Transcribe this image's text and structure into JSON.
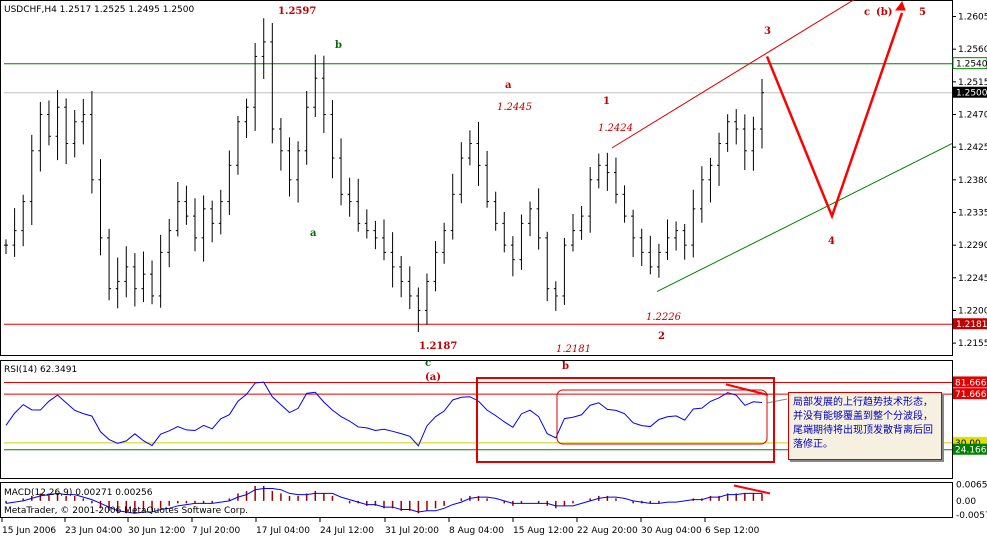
{
  "header": {
    "chart_title": "USDCHF,H4  1.2517 1.2525 1.2495 1.2500",
    "rsi_title": "RSI(14) 62.3491",
    "macd_title": "MACD(12,26,9) 0.00271 0.00256",
    "copyright": "MetaTrader, © 2001-2006 MetaQuotes Software Corp."
  },
  "colors": {
    "bars": "#000000",
    "wave": "#ff0000",
    "channel_red": "#e00000",
    "channel_green": "#008000",
    "rsi_line": "#0000ff",
    "macd_hist": "#a00000"
  },
  "annotation": {
    "text": "局部发展的上行趋势技术形态，并没有能够覆盖到整个分波段，尾端期待将出现顶发散背离后回落修正。"
  },
  "chart_data": [
    {
      "type": "candlestick",
      "symbol": "USDCHF",
      "timeframe": "H4",
      "y_ticks": [
        "1.2605",
        "1.2560",
        "1.2515",
        "1.2470",
        "1.2425",
        "1.2380",
        "1.2335",
        "1.2290",
        "1.2245",
        "1.2200",
        "1.2155"
      ],
      "ylim": [
        1.214,
        1.2625
      ],
      "x_ticks": [
        "15 Jun 2006",
        "23 Jun 04:00",
        "30 Jun 12:00",
        "7 Jul 20:00",
        "17 Jul 04:00",
        "24 Jul 12:00",
        "31 Jul 20:00",
        "8 Aug 04:00",
        "15 Aug 12:00",
        "22 Aug 20:00",
        "30 Aug 04:00",
        "6 Sep 12:00"
      ],
      "price_tags": [
        {
          "value": 1.254,
          "label": "1.2540",
          "style": "green-line"
        },
        {
          "value": 1.25,
          "label": "1.2500",
          "style": "current"
        },
        {
          "value": 1.2181,
          "label": "1.2181",
          "style": "red-line"
        }
      ],
      "close_series": [
        1.229,
        1.231,
        1.235,
        1.242,
        1.247,
        1.244,
        1.248,
        1.243,
        1.246,
        1.247,
        1.238,
        1.23,
        1.223,
        1.224,
        1.226,
        1.223,
        1.225,
        1.222,
        1.228,
        1.231,
        1.235,
        1.233,
        1.23,
        1.234,
        1.232,
        1.235,
        1.24,
        1.246,
        1.248,
        1.255,
        1.257,
        1.245,
        1.242,
        1.238,
        1.242,
        1.248,
        1.252,
        1.247,
        1.241,
        1.236,
        1.235,
        1.232,
        1.231,
        1.23,
        1.228,
        1.226,
        1.224,
        1.222,
        1.22,
        1.224,
        1.228,
        1.231,
        1.236,
        1.241,
        1.243,
        1.24,
        1.235,
        1.232,
        1.229,
        1.227,
        1.232,
        1.234,
        1.23,
        1.223,
        1.222,
        1.229,
        1.231,
        1.233,
        1.238,
        1.24,
        1.239,
        1.236,
        1.233,
        1.23,
        1.228,
        1.226,
        1.228,
        1.23,
        1.231,
        1.229,
        1.234,
        1.238,
        1.24,
        1.243,
        1.246,
        1.245,
        1.242,
        1.245,
        1.25
      ],
      "labels": [
        {
          "text": "1.2597",
          "style": "red-bold"
        },
        {
          "text": "b",
          "style": "green"
        },
        {
          "text": "a",
          "style": "green"
        },
        {
          "text": "a",
          "style": "red-bold"
        },
        {
          "text": "1.2445",
          "style": "red-italic"
        },
        {
          "text": "1",
          "style": "red-bold"
        },
        {
          "text": "1.2424",
          "style": "red-italic"
        },
        {
          "text": "1.2187",
          "style": "red-bold"
        },
        {
          "text": "c",
          "style": "green"
        },
        {
          "text": "(a)",
          "style": "red-bold"
        },
        {
          "text": "1.2181",
          "style": "red-italic"
        },
        {
          "text": "b",
          "style": "red-bold"
        },
        {
          "text": "1.2226",
          "style": "red-italic"
        },
        {
          "text": "2",
          "style": "red-bold"
        },
        {
          "text": "3",
          "style": "red-bold"
        },
        {
          "text": "4",
          "style": "red-bold"
        },
        {
          "text": "c",
          "style": "red-bold"
        },
        {
          "text": "(b)",
          "style": "red-bold"
        },
        {
          "text": "5",
          "style": "red-bold"
        }
      ],
      "wave_projection": [
        "3",
        "4",
        "5"
      ]
    },
    {
      "type": "line",
      "name": "RSI(14)",
      "current": 62.3491,
      "ylim": [
        0,
        100
      ],
      "levels": [
        {
          "value": 81.6667,
          "label": "81.6667"
        },
        {
          "value": 71.6667,
          "label": "71.6667"
        },
        {
          "value": 30.0,
          "label": "30.00"
        },
        {
          "value": 24.1667,
          "label": "24.1667"
        }
      ],
      "values": [
        48,
        55,
        62,
        58,
        60,
        66,
        70,
        64,
        60,
        58,
        50,
        40,
        30,
        28,
        32,
        36,
        34,
        30,
        38,
        42,
        46,
        44,
        40,
        46,
        44,
        50,
        56,
        66,
        74,
        82,
        80,
        68,
        60,
        56,
        62,
        70,
        72,
        64,
        58,
        50,
        50,
        46,
        44,
        42,
        40,
        38,
        36,
        34,
        30,
        42,
        50,
        56,
        64,
        70,
        72,
        66,
        58,
        52,
        48,
        44,
        52,
        56,
        50,
        40,
        34,
        50,
        54,
        56,
        60,
        62,
        60,
        56,
        52,
        48,
        46,
        44,
        48,
        52,
        54,
        50,
        58,
        62,
        64,
        68,
        72,
        68,
        64,
        68,
        62
      ]
    },
    {
      "type": "bar",
      "name": "MACD(12,26,9)",
      "macd": 0.00271,
      "signal": 0.00256,
      "y_ticks": [
        "0.00657",
        "0.00",
        "-0.00571"
      ],
      "ylim": [
        -0.0065,
        0.0072
      ],
      "values": [
        -0.001,
        0.0,
        0.001,
        0.002,
        0.003,
        0.003,
        0.003,
        0.002,
        0.002,
        0.001,
        -0.001,
        -0.003,
        -0.004,
        -0.005,
        -0.005,
        -0.005,
        -0.004,
        -0.004,
        -0.003,
        -0.002,
        -0.001,
        -0.001,
        -0.001,
        -0.001,
        -0.001,
        0.0,
        0.001,
        0.003,
        0.004,
        0.006,
        0.006,
        0.004,
        0.003,
        0.002,
        0.002,
        0.003,
        0.004,
        0.003,
        0.002,
        0.0,
        -0.001,
        -0.001,
        -0.002,
        -0.002,
        -0.003,
        -0.003,
        -0.004,
        -0.004,
        -0.005,
        -0.004,
        -0.003,
        -0.002,
        0.0,
        0.001,
        0.002,
        0.002,
        0.001,
        0.0,
        -0.001,
        -0.002,
        -0.001,
        0.0,
        -0.001,
        -0.002,
        -0.003,
        -0.002,
        -0.001,
        0.0,
        0.001,
        0.002,
        0.002,
        0.001,
        0.0,
        -0.001,
        -0.001,
        -0.001,
        -0.001,
        0.0,
        0.0,
        0.0,
        0.001,
        0.001,
        0.002,
        0.002,
        0.003,
        0.003,
        0.003,
        0.003,
        0.003
      ]
    }
  ]
}
